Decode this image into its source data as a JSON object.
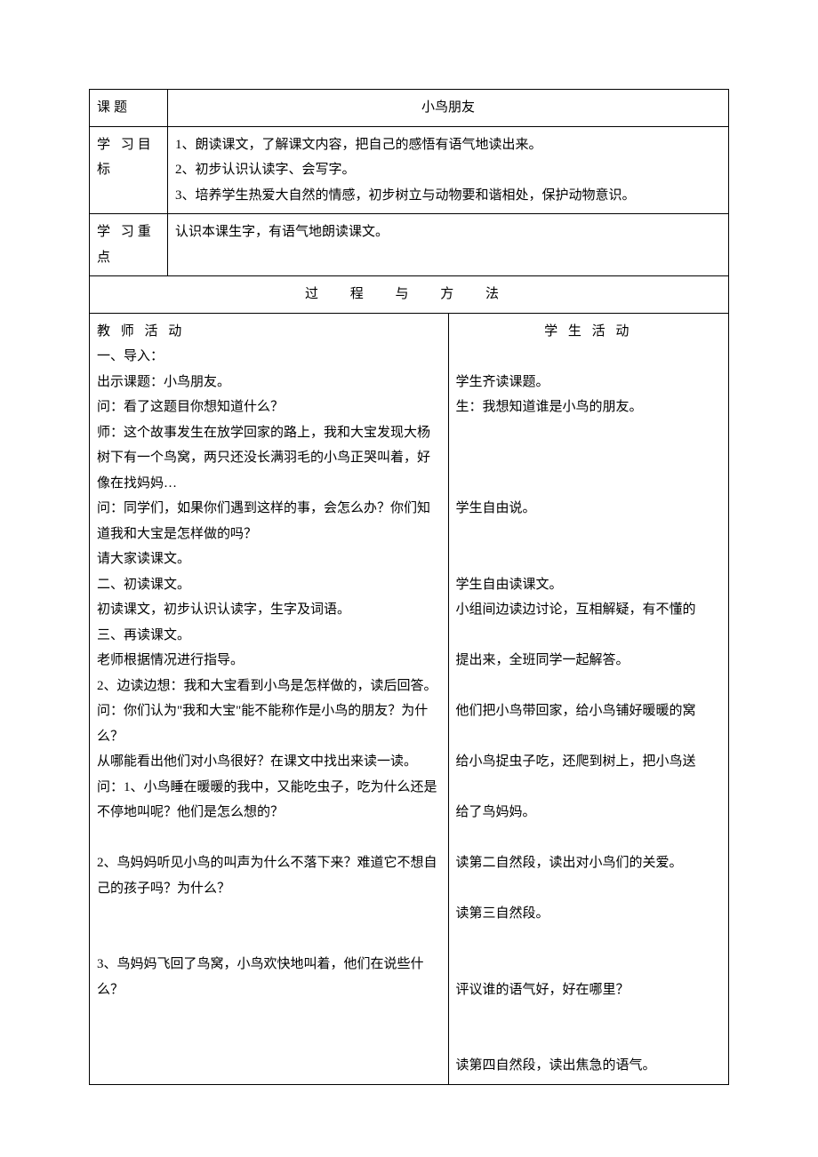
{
  "header": {
    "topic_label": "课题",
    "topic_value": "小鸟朋友",
    "objectives_label": "学 习目 标",
    "objectives": [
      "1、朗读课文，了解课文内容，把自己的感悟有语气地读出来。",
      "2、初步认识认读字、会写字。",
      "3、培养学生热爱大自然的情感，初步树立与动物要和谐相处，保护动物意识。"
    ],
    "keypoint_label": "学 习重 点",
    "keypoint_value": "认识本课生字，有语气地朗读课文。"
  },
  "section_title": "过 程 与 方 法",
  "teacher": {
    "header": "教 师 活 动",
    "lines": [
      "一、导入：",
      "出示课题：小鸟朋友。",
      "问：看了这题目你想知道什么？",
      "师：这个故事发生在放学回家的路上，我和大宝发现大杨树下有一个鸟窝，两只还没长满羽毛的小鸟正哭叫着，好像在找妈妈…",
      "问：同学们，如果你们遇到这样的事，会怎么办？你们知道我和大宝是怎样做的吗？",
      "请大家读课文。",
      "二、初读课文。",
      "初读课文，初步认识认读字，生字及词语。",
      "三、再读课文。",
      "老师根据情况进行指导。",
      "2、边读边想：我和大宝看到小鸟是怎样做的，读后回答。",
      "问：你们认为\"我和大宝\"能不能称作是小鸟的朋友？为什么？",
      "从哪能看出他们对小鸟很好？在课文中找出来读一读。",
      "问：1、小鸟睡在暖暖的我中，又能吃虫子，吃为什么还是不停地叫呢？他们是怎么想的？",
      " ",
      "2、鸟妈妈听见小鸟的叫声为什么不落下来？难道它不想自己的孩子吗？为什么？",
      " ",
      " ",
      "3、鸟妈妈飞回了鸟窝，小鸟欢快地叫着，他们在说些什么？"
    ]
  },
  "student": {
    "header": "学 生 活 动",
    "lines": [
      " ",
      "学生齐读课题。",
      "生：我想知道谁是小鸟的朋友。",
      " ",
      " ",
      " ",
      "学生自由说。",
      " ",
      " ",
      "学生自由读课文。",
      "小组间边读边讨论，互相解疑，有不懂的",
      " ",
      "提出来，全班同学一起解答。",
      " ",
      "他们把小鸟带回家，给小鸟铺好暖暖的窝",
      " ",
      "给小鸟捉虫子吃，还爬到树上，把小鸟送",
      " ",
      "给了鸟妈妈。",
      " ",
      "读第二自然段，读出对小鸟们的关爱。",
      " ",
      "读第三自然段。",
      " ",
      " ",
      "评议谁的语气好，好在哪里？",
      " ",
      " ",
      "读第四自然段，读出焦急的语气。"
    ]
  }
}
